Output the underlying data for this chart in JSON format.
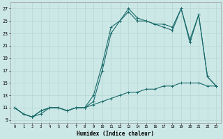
{
  "xlabel": "Humidex (Indice chaleur)",
  "xlim": [
    -0.5,
    23.5
  ],
  "ylim": [
    8.5,
    28
  ],
  "xticks": [
    0,
    1,
    2,
    3,
    4,
    5,
    6,
    7,
    8,
    9,
    10,
    11,
    12,
    13,
    14,
    15,
    16,
    17,
    18,
    19,
    20,
    21,
    22,
    23
  ],
  "yticks": [
    9,
    11,
    13,
    15,
    17,
    19,
    21,
    23,
    25,
    27
  ],
  "bg_color": "#cce8e6",
  "line_color": "#1a6b6b",
  "grid_color": "#b8d8d6",
  "line1_x": [
    0,
    1,
    2,
    3,
    4,
    5,
    6,
    7,
    8,
    9,
    10,
    11,
    12,
    13,
    14,
    15,
    16,
    17,
    18,
    19,
    20,
    21,
    22,
    23
  ],
  "line1_y": [
    11,
    10,
    9.5,
    10.5,
    11,
    11,
    10.5,
    11,
    11,
    13,
    18,
    24,
    25,
    27,
    25.5,
    25,
    24.5,
    24,
    23.5,
    27,
    21.5,
    26,
    16,
    14.5
  ],
  "line2_x": [
    0,
    1,
    2,
    3,
    4,
    5,
    6,
    7,
    8,
    9,
    10,
    11,
    12,
    13,
    14,
    15,
    16,
    17,
    18,
    19,
    20,
    21,
    22,
    23
  ],
  "line2_y": [
    11,
    10,
    9.5,
    10.5,
    11,
    11,
    10.5,
    11,
    11,
    12,
    17,
    23,
    25,
    26.5,
    25,
    25,
    24.5,
    24.5,
    24,
    27,
    22,
    26,
    16,
    14.5
  ],
  "line3_x": [
    0,
    1,
    2,
    3,
    4,
    5,
    6,
    7,
    8,
    9,
    10,
    11,
    12,
    13,
    14,
    15,
    16,
    17,
    18,
    19,
    20,
    21,
    22,
    23
  ],
  "line3_y": [
    11,
    10,
    9.5,
    10,
    11,
    11,
    10.5,
    11,
    11,
    11.5,
    12,
    12.5,
    13,
    13.5,
    13.5,
    14,
    14,
    14.5,
    14.5,
    15,
    15,
    15,
    14.5,
    14.5
  ]
}
